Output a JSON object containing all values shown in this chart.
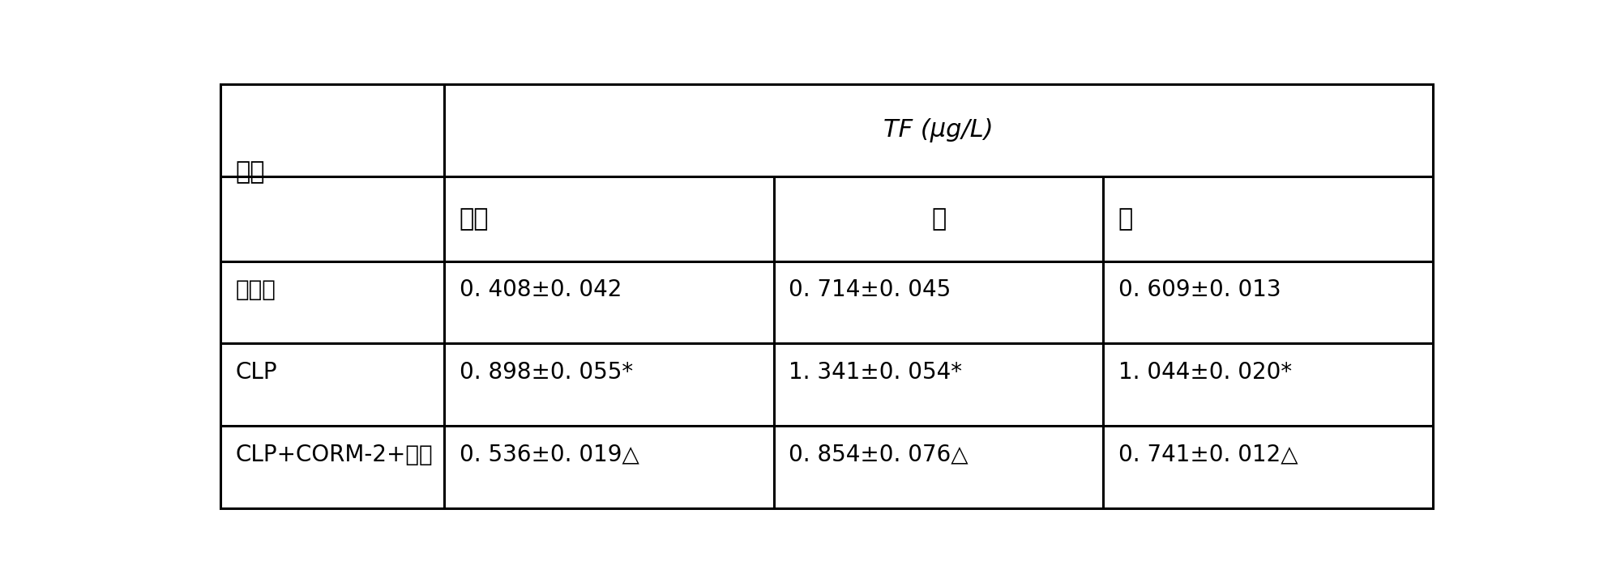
{
  "title_col": "分组",
  "header_span": "TF (μg/L)",
  "sub_headers": [
    "血浆",
    "肝",
    "肺"
  ],
  "rows": [
    {
      "label": "对照组",
      "values": [
        "0. 408±0. 042",
        "0. 714±0. 045",
        "0. 609±0. 013"
      ]
    },
    {
      "label": "CLP",
      "values": [
        "0. 898±0. 055*",
        "1. 341±0. 054*",
        "1. 044±0. 020*"
      ]
    },
    {
      "label": "CLP+CORM-2+肝素",
      "values": [
        "0. 536±0. 019△",
        "0. 854±0. 076△",
        "0. 741±0. 012△"
      ]
    }
  ],
  "background_color": "#ffffff",
  "line_color": "#000000",
  "font_size_header": 22,
  "font_size_cell": 20,
  "font_size_label": 20
}
